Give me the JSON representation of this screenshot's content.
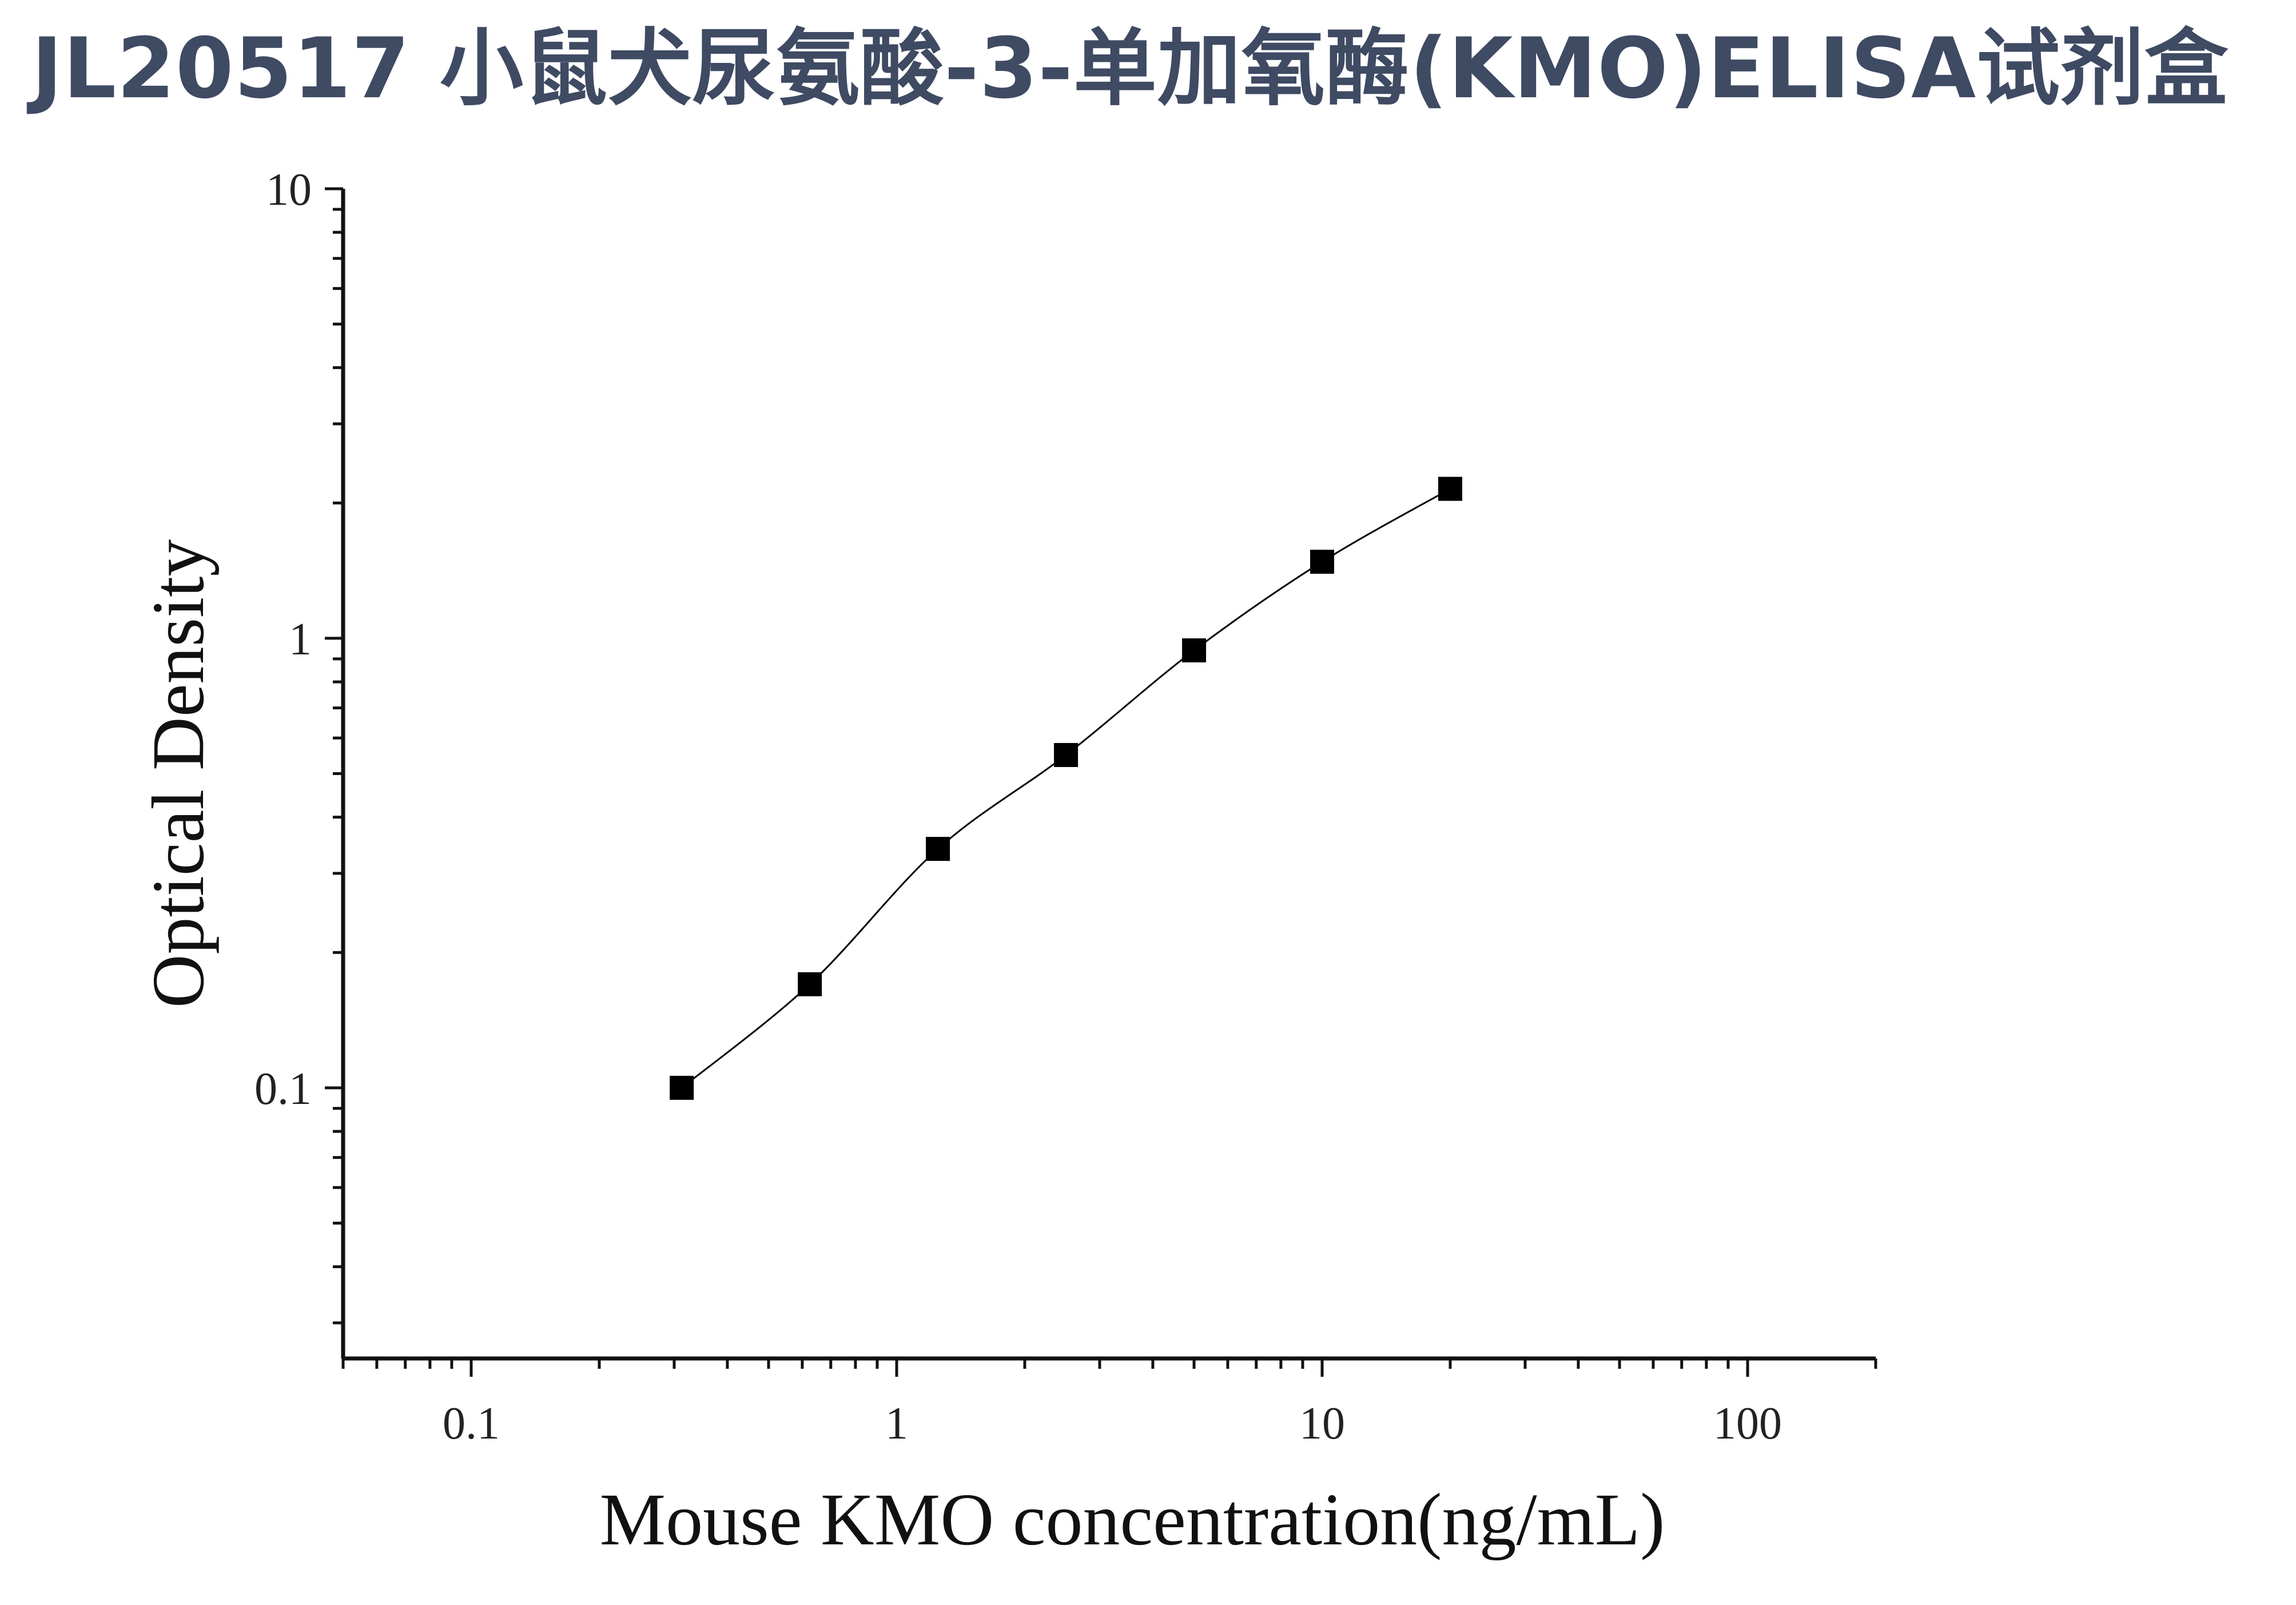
{
  "title": "JL20517 小鼠犬尿氨酸-3-单加氧酶(KMO)ELISA试剂盒",
  "chart_data": {
    "type": "scatter",
    "xlabel": "Mouse KMO concentration(ng/mL)",
    "ylabel": "Optical Density",
    "xscale": "log",
    "yscale": "log",
    "xlim": [
      0.05,
      200
    ],
    "ylim": [
      0.025,
      10
    ],
    "x_ticks": [
      0.1,
      1,
      10,
      100
    ],
    "x_tick_labels": [
      "0.1",
      "1",
      "10",
      "100"
    ],
    "y_ticks": [
      0.1,
      1,
      10
    ],
    "y_tick_labels": [
      "0.1",
      "1",
      "10"
    ],
    "grid": false,
    "marker_color": "#000000",
    "line_color": "#000000",
    "series": [
      {
        "x": [
          0.3125,
          0.625,
          1.25,
          2.5,
          5,
          10,
          20
        ],
        "y": [
          0.1,
          0.17,
          0.34,
          0.55,
          0.94,
          1.48,
          2.15
        ]
      }
    ]
  }
}
